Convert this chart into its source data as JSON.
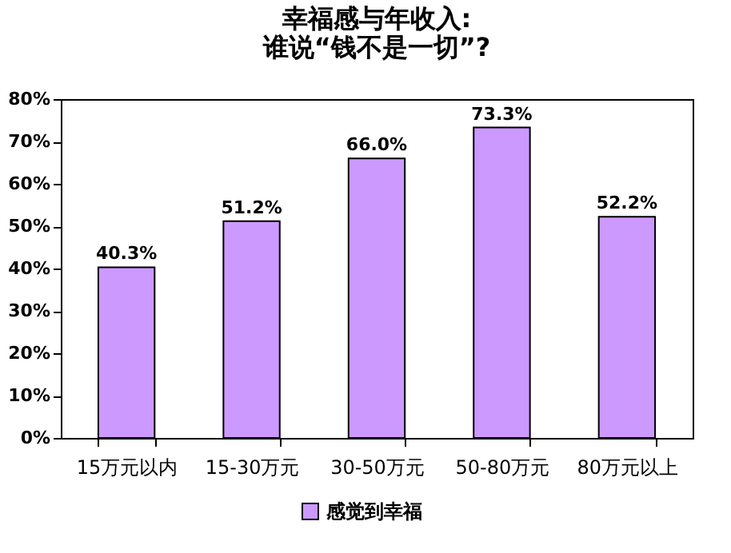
{
  "chart_data": {
    "type": "bar",
    "title": "幸福感与年收入:\n谁说“钱不是一切”?",
    "categories": [
      "15万元以内",
      "15-30万元",
      "30-50万元",
      "50-80万元",
      "80万元以上"
    ],
    "series": [
      {
        "name": "感觉到幸福",
        "color": "#cc99ff",
        "values": [
          40.3,
          51.2,
          66.0,
          73.3,
          52.2
        ],
        "value_labels": [
          "40.3%",
          "51.2%",
          "66.0%",
          "73.3%",
          "52.2%"
        ]
      }
    ],
    "ylim": [
      0,
      80
    ],
    "yticks": [
      {
        "value": 0,
        "label": "0%"
      },
      {
        "value": 10,
        "label": "10%"
      },
      {
        "value": 20,
        "label": "20%"
      },
      {
        "value": 30,
        "label": "30%"
      },
      {
        "value": 40,
        "label": "40%"
      },
      {
        "value": 50,
        "label": "50%"
      },
      {
        "value": 60,
        "label": "60%"
      },
      {
        "value": 70,
        "label": "70%"
      },
      {
        "value": 80,
        "label": "80%"
      }
    ],
    "grid": false,
    "legend": "bottom"
  }
}
